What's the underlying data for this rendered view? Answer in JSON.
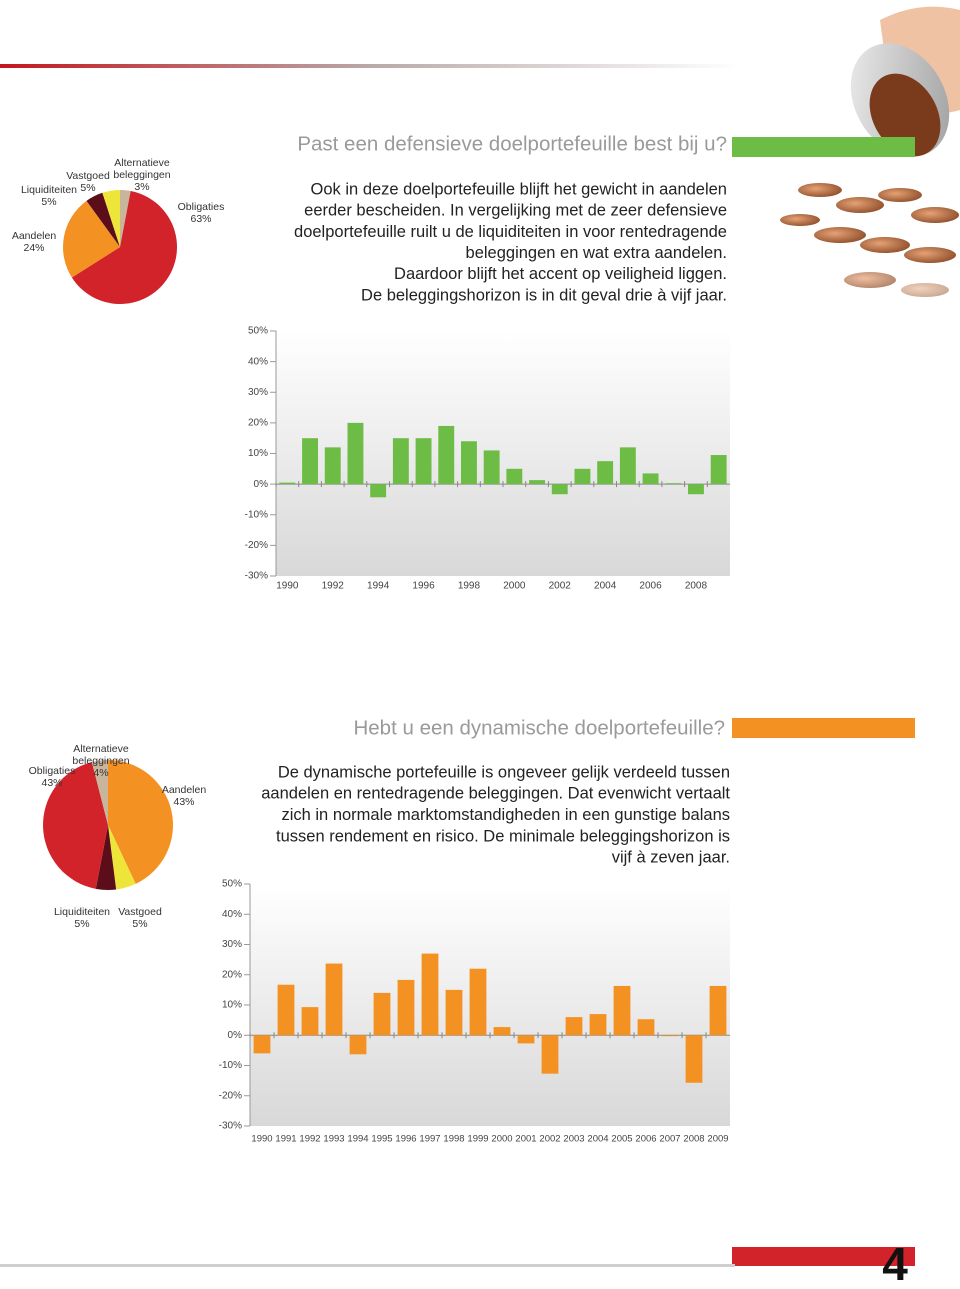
{
  "page_number": "4",
  "sections": [
    {
      "title": "Past een defensieve doelportefeuille best bij u?",
      "lines": [
        "Ook in deze doelportefeuille blijft het gewicht in aandelen",
        "eerder bescheiden. In vergelijking met de zeer defensieve",
        "doelportefeuille ruilt u de liquiditeiten in voor rentedragende",
        "beleggingen en wat extra aandelen.",
        "Daardoor blijft het accent op veiligheid liggen.",
        "De beleggingshorizon is in dit geval drie à vijf jaar."
      ]
    },
    {
      "title": "Hebt u een dynamische doelportefeuille?",
      "lines": [
        "De dynamische portefeuille is ongeveer gelijk verdeeld tussen",
        "aandelen en rentedragende beleggingen. Dat evenwicht vertaalt",
        "zich in normale marktomstandigheden in een gunstige balans",
        "tussen rendement en risico. De minimale beleggingshorizon is",
        "vijf à zeven jaar."
      ]
    }
  ],
  "chart_data": [
    {
      "type": "pie",
      "categories": [
        "Alternatieve beleggingen",
        "Obligaties",
        "Aandelen",
        "Liquiditeiten",
        "Vastgoed"
      ],
      "values": [
        3,
        63,
        24,
        5,
        5
      ],
      "value_labels": [
        "3%",
        "63%",
        "24%",
        "5%",
        "5%"
      ],
      "colors": [
        "#c9b59b",
        "#d2232a",
        "#f39223",
        "#5c0d1a",
        "#eee53b"
      ]
    },
    {
      "type": "bar",
      "categories": [
        "1990",
        null,
        "1992",
        null,
        "1994",
        null,
        "1996",
        null,
        "1998",
        null,
        "2000",
        null,
        "2002",
        null,
        "2004",
        null,
        "2006",
        null,
        "2008",
        null
      ],
      "values": [
        0.5,
        15,
        12,
        20,
        -4.3,
        15,
        15,
        19,
        14,
        11,
        5,
        1.3,
        -3.3,
        5,
        7.5,
        12,
        3.5,
        0.3,
        -3.3,
        9.5
      ],
      "color": "#6cbc45",
      "ylim": [
        -30,
        50
      ],
      "yticks": [
        {
          "value": -30,
          "label": "-30%"
        },
        {
          "value": -20,
          "label": "-20%"
        },
        {
          "value": -10,
          "label": "-10%"
        },
        {
          "value": 0,
          "label": "0%"
        },
        {
          "value": 10,
          "label": "10%"
        },
        {
          "value": 20,
          "label": "20%"
        },
        {
          "value": 30,
          "label": "30%"
        },
        {
          "value": 40,
          "label": "40%"
        },
        {
          "value": 50,
          "label": "50%"
        }
      ]
    },
    {
      "type": "pie",
      "categories": [
        "Aandelen",
        "Vastgoed",
        "Liquiditeiten",
        "Obligaties",
        "Alternatieve beleggingen"
      ],
      "values": [
        43,
        5,
        5,
        43,
        4
      ],
      "value_labels": [
        "43%",
        "5%",
        "5%",
        "43%",
        "4%"
      ],
      "colors": [
        "#f39223",
        "#eee53b",
        "#5c0d1a",
        "#d2232a",
        "#c9b59b"
      ]
    },
    {
      "type": "bar",
      "categories": [
        "1990",
        "1991",
        "1992",
        "1993",
        "1994",
        "1995",
        "1996",
        "1997",
        "1998",
        "1999",
        "2000",
        "2001",
        "2002",
        "2003",
        "2004",
        "2005",
        "2006",
        "2007",
        "2008",
        "2009"
      ],
      "values": [
        -6,
        16.7,
        9.3,
        23.7,
        -6.3,
        14,
        18.3,
        27,
        15,
        22,
        2.7,
        -2.7,
        -12.7,
        6,
        7,
        16.3,
        5.3,
        -0.3,
        -15.7,
        16.3
      ],
      "color": "#f39223",
      "ylim": [
        -30,
        50
      ],
      "yticks": [
        {
          "value": -30,
          "label": "-30%"
        },
        {
          "value": -20,
          "label": "-20%"
        },
        {
          "value": -10,
          "label": "-10%"
        },
        {
          "value": 0,
          "label": "0%"
        },
        {
          "value": 10,
          "label": "10%"
        },
        {
          "value": 20,
          "label": "20%"
        },
        {
          "value": 30,
          "label": "30%"
        },
        {
          "value": 40,
          "label": "40%"
        },
        {
          "value": 50,
          "label": "50%"
        }
      ]
    }
  ]
}
